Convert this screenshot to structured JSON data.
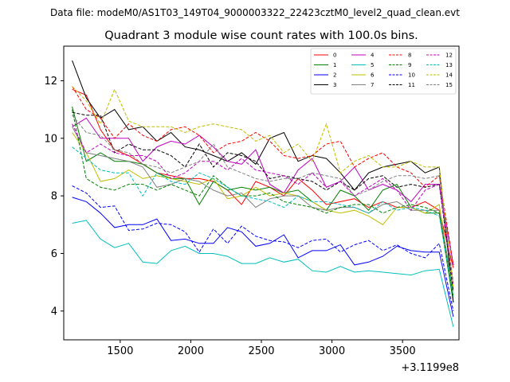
{
  "chart_data": {
    "type": "line",
    "suptitle": "Data file: modeM0/AS1T03_149T04_9000003322_22423cztM0_level2_quad_clean.evt",
    "title": "Quadrant 3 module wise count rates with 100.0s bins.",
    "xlabel": "",
    "ylabel": "",
    "x_offset_label": "+3.1199e8",
    "xlim": [
      1100,
      3900
    ],
    "ylim": [
      3.0,
      13.2
    ],
    "x_ticks": [
      1500,
      2000,
      2500,
      3000,
      3500
    ],
    "y_ticks": [
      4,
      6,
      8,
      10,
      12
    ],
    "legend_position": "top-right",
    "x": [
      1160,
      1260,
      1360,
      1460,
      1560,
      1660,
      1760,
      1860,
      1960,
      2060,
      2160,
      2260,
      2360,
      2460,
      2560,
      2660,
      2760,
      2860,
      2960,
      3060,
      3160,
      3260,
      3360,
      3460,
      3560,
      3660,
      3760,
      3860
    ],
    "series": [
      {
        "name": "0",
        "color": "#ff0000",
        "style": "solid",
        "values": [
          11.7,
          11.5,
          10.3,
          9.6,
          9.4,
          9.1,
          8.8,
          8.7,
          8.6,
          8.6,
          8.5,
          8.2,
          7.7,
          8.5,
          8.3,
          8.0,
          8.6,
          8.2,
          7.7,
          7.8,
          7.9,
          7.6,
          7.8,
          7.6,
          7.6,
          7.8,
          7.5,
          5.5
        ]
      },
      {
        "name": "1",
        "color": "#008000",
        "style": "solid",
        "values": [
          11.1,
          9.2,
          9.5,
          9.2,
          9.2,
          9.1,
          8.8,
          8.6,
          8.6,
          7.7,
          8.5,
          8.2,
          8.3,
          8.2,
          8.3,
          8.1,
          8.2,
          7.8,
          7.5,
          8.2,
          8.0,
          7.5,
          8.2,
          8.4,
          7.6,
          7.4,
          7.4,
          4.3
        ]
      },
      {
        "name": "2",
        "color": "#0000ff",
        "style": "solid",
        "values": [
          7.95,
          7.8,
          7.4,
          6.9,
          7.0,
          7.0,
          7.2,
          6.45,
          6.5,
          6.35,
          6.35,
          6.9,
          6.75,
          6.25,
          6.35,
          6.65,
          5.85,
          6.1,
          6.1,
          6.3,
          5.6,
          5.7,
          5.9,
          6.25,
          6.1,
          6.05,
          6.05,
          3.8
        ]
      },
      {
        "name": "3",
        "color": "#000000",
        "style": "solid",
        "values": [
          12.7,
          11.4,
          10.7,
          11.0,
          10.3,
          10.4,
          9.9,
          10.2,
          9.7,
          9.6,
          9.4,
          9.2,
          9.5,
          9.1,
          10.0,
          10.2,
          9.2,
          9.4,
          9.3,
          8.8,
          8.2,
          8.8,
          9.0,
          9.1,
          9.2,
          8.8,
          9.0,
          4.3
        ]
      },
      {
        "name": "4",
        "color": "#bf00bf",
        "style": "solid",
        "values": [
          10.4,
          10.7,
          10.0,
          10.0,
          10.0,
          9.2,
          9.7,
          9.9,
          9.8,
          10.1,
          9.7,
          9.2,
          9.1,
          9.6,
          8.4,
          8.1,
          8.9,
          9.3,
          8.3,
          8.5,
          9.0,
          8.2,
          8.4,
          8.2,
          7.8,
          8.4,
          8.4,
          5.6
        ]
      },
      {
        "name": "5",
        "color": "#00bfbf",
        "style": "solid",
        "values": [
          7.05,
          7.15,
          6.5,
          6.2,
          6.35,
          5.7,
          5.65,
          6.1,
          6.25,
          6.0,
          6.0,
          5.9,
          5.65,
          5.65,
          5.85,
          5.7,
          5.8,
          5.4,
          5.35,
          5.55,
          5.35,
          5.4,
          5.35,
          5.3,
          5.25,
          5.4,
          5.45,
          3.45
        ]
      },
      {
        "name": "6",
        "color": "#bfbf00",
        "style": "solid",
        "values": [
          10.2,
          9.5,
          8.5,
          8.6,
          8.9,
          8.6,
          8.7,
          8.6,
          8.5,
          8.4,
          8.6,
          7.9,
          8.0,
          8.3,
          8.0,
          8.1,
          8.0,
          7.8,
          7.5,
          7.4,
          7.5,
          7.3,
          7.0,
          7.6,
          7.6,
          7.4,
          7.7,
          4.5
        ]
      },
      {
        "name": "7",
        "color": "#808080",
        "style": "solid",
        "values": [
          10.4,
          9.5,
          9.4,
          9.3,
          9.2,
          9.0,
          8.3,
          8.4,
          8.6,
          8.5,
          8.2,
          8.0,
          8.1,
          7.6,
          7.9,
          8.0,
          8.0,
          7.6,
          7.5,
          7.6,
          7.6,
          7.4,
          7.7,
          7.8,
          7.5,
          7.5,
          7.5,
          4.7
        ]
      },
      {
        "name": "8",
        "color": "#ff0000",
        "style": "dashed",
        "values": [
          11.8,
          11.0,
          10.7,
          10.0,
          10.5,
          10.1,
          9.9,
          10.3,
          10.4,
          10.1,
          9.5,
          9.8,
          9.9,
          10.2,
          9.9,
          9.4,
          9.3,
          9.4,
          9.8,
          9.9,
          9.0,
          9.3,
          9.5,
          9.0,
          8.8,
          8.3,
          8.7,
          5.6
        ]
      },
      {
        "name": "9",
        "color": "#008000",
        "style": "dashed",
        "values": [
          11.0,
          8.6,
          8.3,
          8.2,
          8.4,
          8.4,
          8.2,
          8.4,
          8.2,
          8.0,
          8.7,
          8.3,
          8.0,
          8.0,
          8.1,
          7.8,
          7.7,
          7.6,
          7.4,
          7.6,
          7.7,
          7.7,
          7.4,
          7.6,
          7.7,
          7.6,
          7.4,
          4.5
        ]
      },
      {
        "name": "10",
        "color": "#0000ff",
        "style": "dashed",
        "values": [
          8.35,
          8.1,
          7.6,
          7.65,
          6.8,
          6.85,
          7.05,
          7.0,
          6.75,
          6.05,
          6.85,
          6.35,
          6.95,
          6.6,
          6.45,
          6.4,
          6.2,
          6.45,
          6.5,
          6.05,
          6.3,
          6.45,
          6.1,
          6.3,
          6.0,
          5.85,
          6.35,
          4.0
        ]
      },
      {
        "name": "11",
        "color": "#000000",
        "style": "dashed",
        "values": [
          10.9,
          10.8,
          10.8,
          9.5,
          9.8,
          9.6,
          9.6,
          9.4,
          9.0,
          9.8,
          9.0,
          9.5,
          9.4,
          9.2,
          8.6,
          8.7,
          8.6,
          8.5,
          8.2,
          8.5,
          8.2,
          8.6,
          8.7,
          8.3,
          8.4,
          8.3,
          8.4,
          4.7
        ]
      },
      {
        "name": "12",
        "color": "#bf00bf",
        "style": "dashed",
        "values": [
          10.5,
          9.5,
          9.8,
          9.5,
          9.4,
          9.4,
          9.2,
          8.6,
          8.8,
          9.2,
          9.2,
          8.9,
          9.3,
          8.9,
          8.8,
          8.7,
          8.4,
          8.8,
          8.3,
          8.5,
          8.0,
          8.3,
          8.6,
          8.2,
          7.5,
          8.2,
          8.4,
          4.9
        ]
      },
      {
        "name": "13",
        "color": "#00bfbf",
        "style": "dashed",
        "values": [
          9.7,
          9.3,
          8.9,
          8.8,
          8.8,
          8.0,
          8.8,
          8.5,
          8.4,
          8.8,
          8.6,
          8.3,
          8.0,
          7.9,
          7.8,
          7.6,
          8.0,
          7.8,
          7.8,
          7.7,
          7.6,
          7.4,
          7.8,
          7.5,
          7.6,
          7.5,
          7.3,
          4.5
        ]
      },
      {
        "name": "14",
        "color": "#bfbf00",
        "style": "dashed",
        "values": [
          11.8,
          11.3,
          10.5,
          11.7,
          10.6,
          10.4,
          10.4,
          10.4,
          10.2,
          10.4,
          10.5,
          10.4,
          10.3,
          9.9,
          10.1,
          9.5,
          9.8,
          9.2,
          10.5,
          8.8,
          9.2,
          9.4,
          9.0,
          9.0,
          9.2,
          9.0,
          9.0,
          4.8
        ]
      },
      {
        "name": "15",
        "color": "#808080",
        "style": "dashed",
        "values": [
          10.8,
          10.2,
          10.1,
          9.6,
          9.5,
          9.1,
          9.0,
          8.8,
          9.0,
          9.2,
          9.8,
          9.0,
          8.8,
          8.6,
          8.5,
          8.6,
          8.6,
          8.8,
          8.7,
          8.6,
          8.0,
          8.2,
          8.5,
          8.7,
          8.7,
          8.6,
          8.7,
          5.0
        ]
      }
    ]
  }
}
